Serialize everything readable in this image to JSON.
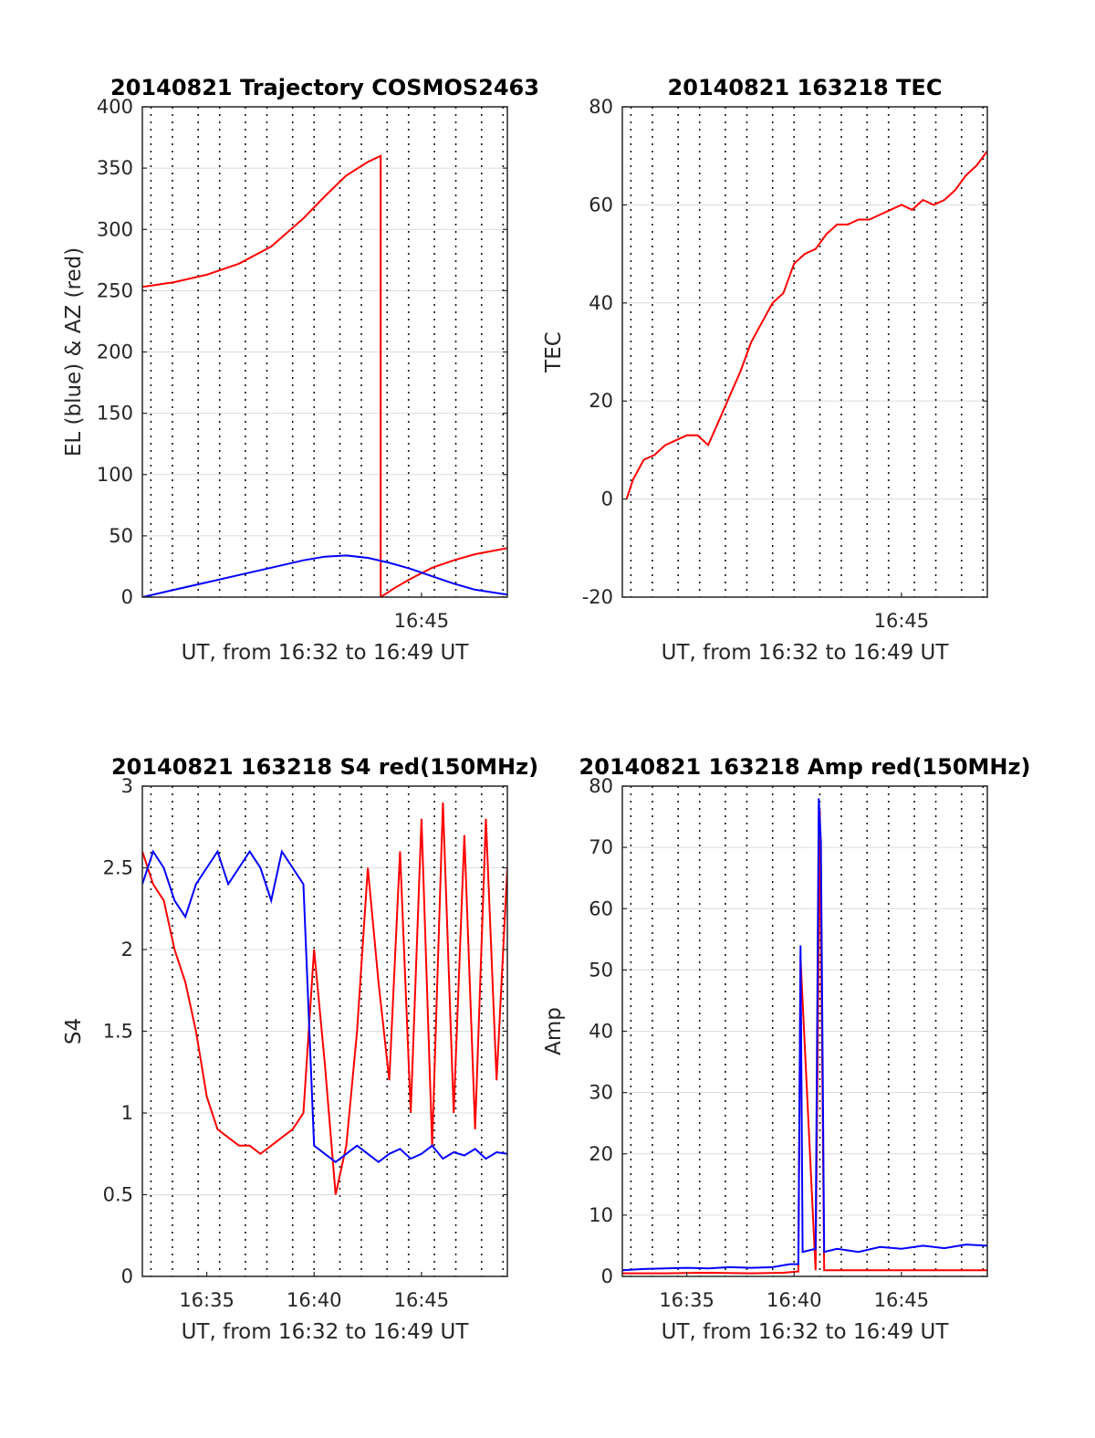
{
  "chart_data": [
    {
      "type": "line",
      "title": "20140821 Trajectory COSMOS2463",
      "xlabel": "UT, from 16:32 to 16:49 UT",
      "ylabel": "EL (blue) & AZ (red)",
      "xlim": [
        32,
        49
      ],
      "ylim": [
        0,
        400
      ],
      "yticks": [
        0,
        50,
        100,
        150,
        200,
        250,
        300,
        350,
        400
      ],
      "xticklabels": [
        {
          "x": 45,
          "label": "16:45"
        }
      ],
      "grid": true,
      "series": [
        {
          "color": "#ff0000",
          "x": [
            32.0,
            33.5,
            35.0,
            36.5,
            38.0,
            39.5,
            40.5,
            41.5,
            42.5,
            43.1,
            43.1,
            43.8,
            44.5,
            45.5,
            46.5,
            47.5,
            49.0
          ],
          "y": [
            253,
            257,
            263,
            272,
            286,
            309,
            327,
            344,
            355,
            360,
            0,
            8,
            15,
            24,
            30,
            35,
            40
          ]
        },
        {
          "color": "#0000ff",
          "x": [
            32.0,
            33.5,
            35.0,
            36.5,
            38.0,
            39.5,
            40.5,
            41.5,
            42.5,
            43.5,
            44.5,
            45.5,
            46.5,
            47.5,
            49.0
          ],
          "y": [
            0,
            6,
            12,
            18,
            24,
            30,
            33,
            34,
            32,
            28,
            23,
            17,
            11,
            6,
            2
          ]
        }
      ]
    },
    {
      "type": "line",
      "title": "20140821 163218 TEC",
      "xlabel": "UT, from 16:32 to 16:49 UT",
      "ylabel": "TEC",
      "xlim": [
        32,
        49
      ],
      "ylim": [
        -20,
        80
      ],
      "yticks": [
        -20,
        0,
        20,
        40,
        60,
        80
      ],
      "xticklabels": [
        {
          "x": 45,
          "label": "16:45"
        }
      ],
      "grid": true,
      "series": [
        {
          "color": "#ff0000",
          "x": [
            32.2,
            32.5,
            33.0,
            33.5,
            34.0,
            34.5,
            35.0,
            35.5,
            36.0,
            36.5,
            37.0,
            37.5,
            38.0,
            38.5,
            39.0,
            39.5,
            40.0,
            40.5,
            41.0,
            41.5,
            42.0,
            42.5,
            43.0,
            43.5,
            44.0,
            44.5,
            45.0,
            45.5,
            46.0,
            46.5,
            47.0,
            47.5,
            48.0,
            48.5,
            49.0
          ],
          "y": [
            0,
            4,
            8,
            9,
            11,
            12,
            13,
            13,
            11,
            16,
            21,
            26,
            32,
            36,
            40,
            42,
            48,
            50,
            51,
            54,
            56,
            56,
            57,
            57,
            58,
            59,
            60,
            59,
            61,
            60,
            61,
            63,
            66,
            68,
            71
          ]
        }
      ]
    },
    {
      "type": "line",
      "title": "20140821 163218 S4 red(150MHz)",
      "xlabel": "UT, from 16:32 to 16:49 UT",
      "ylabel": "S4",
      "xlim": [
        32,
        49
      ],
      "ylim": [
        0,
        3
      ],
      "yticks": [
        0,
        0.5,
        1,
        1.5,
        2,
        2.5,
        3
      ],
      "xticklabels": [
        {
          "x": 35,
          "label": "16:35"
        },
        {
          "x": 40,
          "label": "16:40"
        },
        {
          "x": 45,
          "label": "16:45"
        }
      ],
      "grid": true,
      "series": [
        {
          "color": "#ff0000",
          "x": [
            32.0,
            32.5,
            33.0,
            33.5,
            34.0,
            34.5,
            35.0,
            35.5,
            36.0,
            36.5,
            37.0,
            37.5,
            38.0,
            38.5,
            39.0,
            39.5,
            40.0,
            40.5,
            41.0,
            41.5,
            42.0,
            42.5,
            43.0,
            43.5,
            44.0,
            44.5,
            45.0,
            45.5,
            46.0,
            46.5,
            47.0,
            47.5,
            48.0,
            48.5,
            49.0
          ],
          "y": [
            2.6,
            2.4,
            2.3,
            2.0,
            1.8,
            1.5,
            1.1,
            0.9,
            0.85,
            0.8,
            0.8,
            0.75,
            0.8,
            0.85,
            0.9,
            1.0,
            2.0,
            1.3,
            0.5,
            0.8,
            1.5,
            2.5,
            1.8,
            1.2,
            2.6,
            1.0,
            2.8,
            0.8,
            2.9,
            1.0,
            2.7,
            0.9,
            2.8,
            1.2,
            2.5
          ]
        },
        {
          "color": "#0000ff",
          "x": [
            32.0,
            32.5,
            33.0,
            33.5,
            34.0,
            34.5,
            35.0,
            35.5,
            36.0,
            36.5,
            37.0,
            37.5,
            38.0,
            38.5,
            39.0,
            39.5,
            40.0,
            40.5,
            41.0,
            41.5,
            42.0,
            42.5,
            43.0,
            43.5,
            44.0,
            44.5,
            45.0,
            45.5,
            46.0,
            46.5,
            47.0,
            47.5,
            48.0,
            48.5,
            49.0
          ],
          "y": [
            2.4,
            2.6,
            2.5,
            2.3,
            2.2,
            2.4,
            2.5,
            2.6,
            2.4,
            2.5,
            2.6,
            2.5,
            2.3,
            2.6,
            2.5,
            2.4,
            0.8,
            0.75,
            0.7,
            0.75,
            0.8,
            0.75,
            0.7,
            0.75,
            0.78,
            0.72,
            0.75,
            0.8,
            0.72,
            0.76,
            0.74,
            0.78,
            0.72,
            0.76,
            0.75
          ]
        }
      ]
    },
    {
      "type": "line",
      "title": "20140821 163218 Amp red(150MHz)",
      "xlabel": "UT, from 16:32 to 16:49 UT",
      "ylabel": "Amp",
      "xlim": [
        32,
        49
      ],
      "ylim": [
        0,
        80
      ],
      "yticks": [
        0,
        10,
        20,
        30,
        40,
        50,
        60,
        70,
        80
      ],
      "xticklabels": [
        {
          "x": 35,
          "label": "16:35"
        },
        {
          "x": 40,
          "label": "16:40"
        },
        {
          "x": 45,
          "label": "16:45"
        }
      ],
      "grid": true,
      "series": [
        {
          "color": "#ff0000",
          "x": [
            32.0,
            34.0,
            36.0,
            38.0,
            39.5,
            40.2,
            40.3,
            41.0,
            41.2,
            41.4,
            43.0,
            45.0,
            47.0,
            49.0
          ],
          "y": [
            0.5,
            0.5,
            0.6,
            0.5,
            0.6,
            0.8,
            52,
            1.0,
            76,
            1.0,
            1.0,
            1.0,
            1.0,
            1.0
          ]
        },
        {
          "color": "#0000ff",
          "x": [
            32.0,
            33.0,
            34.0,
            35.0,
            36.0,
            37.0,
            38.0,
            39.0,
            39.8,
            40.2,
            40.3,
            40.4,
            41.0,
            41.15,
            41.25,
            41.4,
            42.0,
            43.0,
            44.0,
            45.0,
            46.0,
            47.0,
            48.0,
            49.0
          ],
          "y": [
            1.0,
            1.2,
            1.3,
            1.4,
            1.3,
            1.5,
            1.4,
            1.5,
            2.0,
            2.0,
            54,
            4.0,
            4.5,
            78,
            71,
            4.0,
            4.5,
            4.0,
            4.8,
            4.5,
            5.0,
            4.6,
            5.2,
            5.0
          ]
        }
      ]
    }
  ]
}
